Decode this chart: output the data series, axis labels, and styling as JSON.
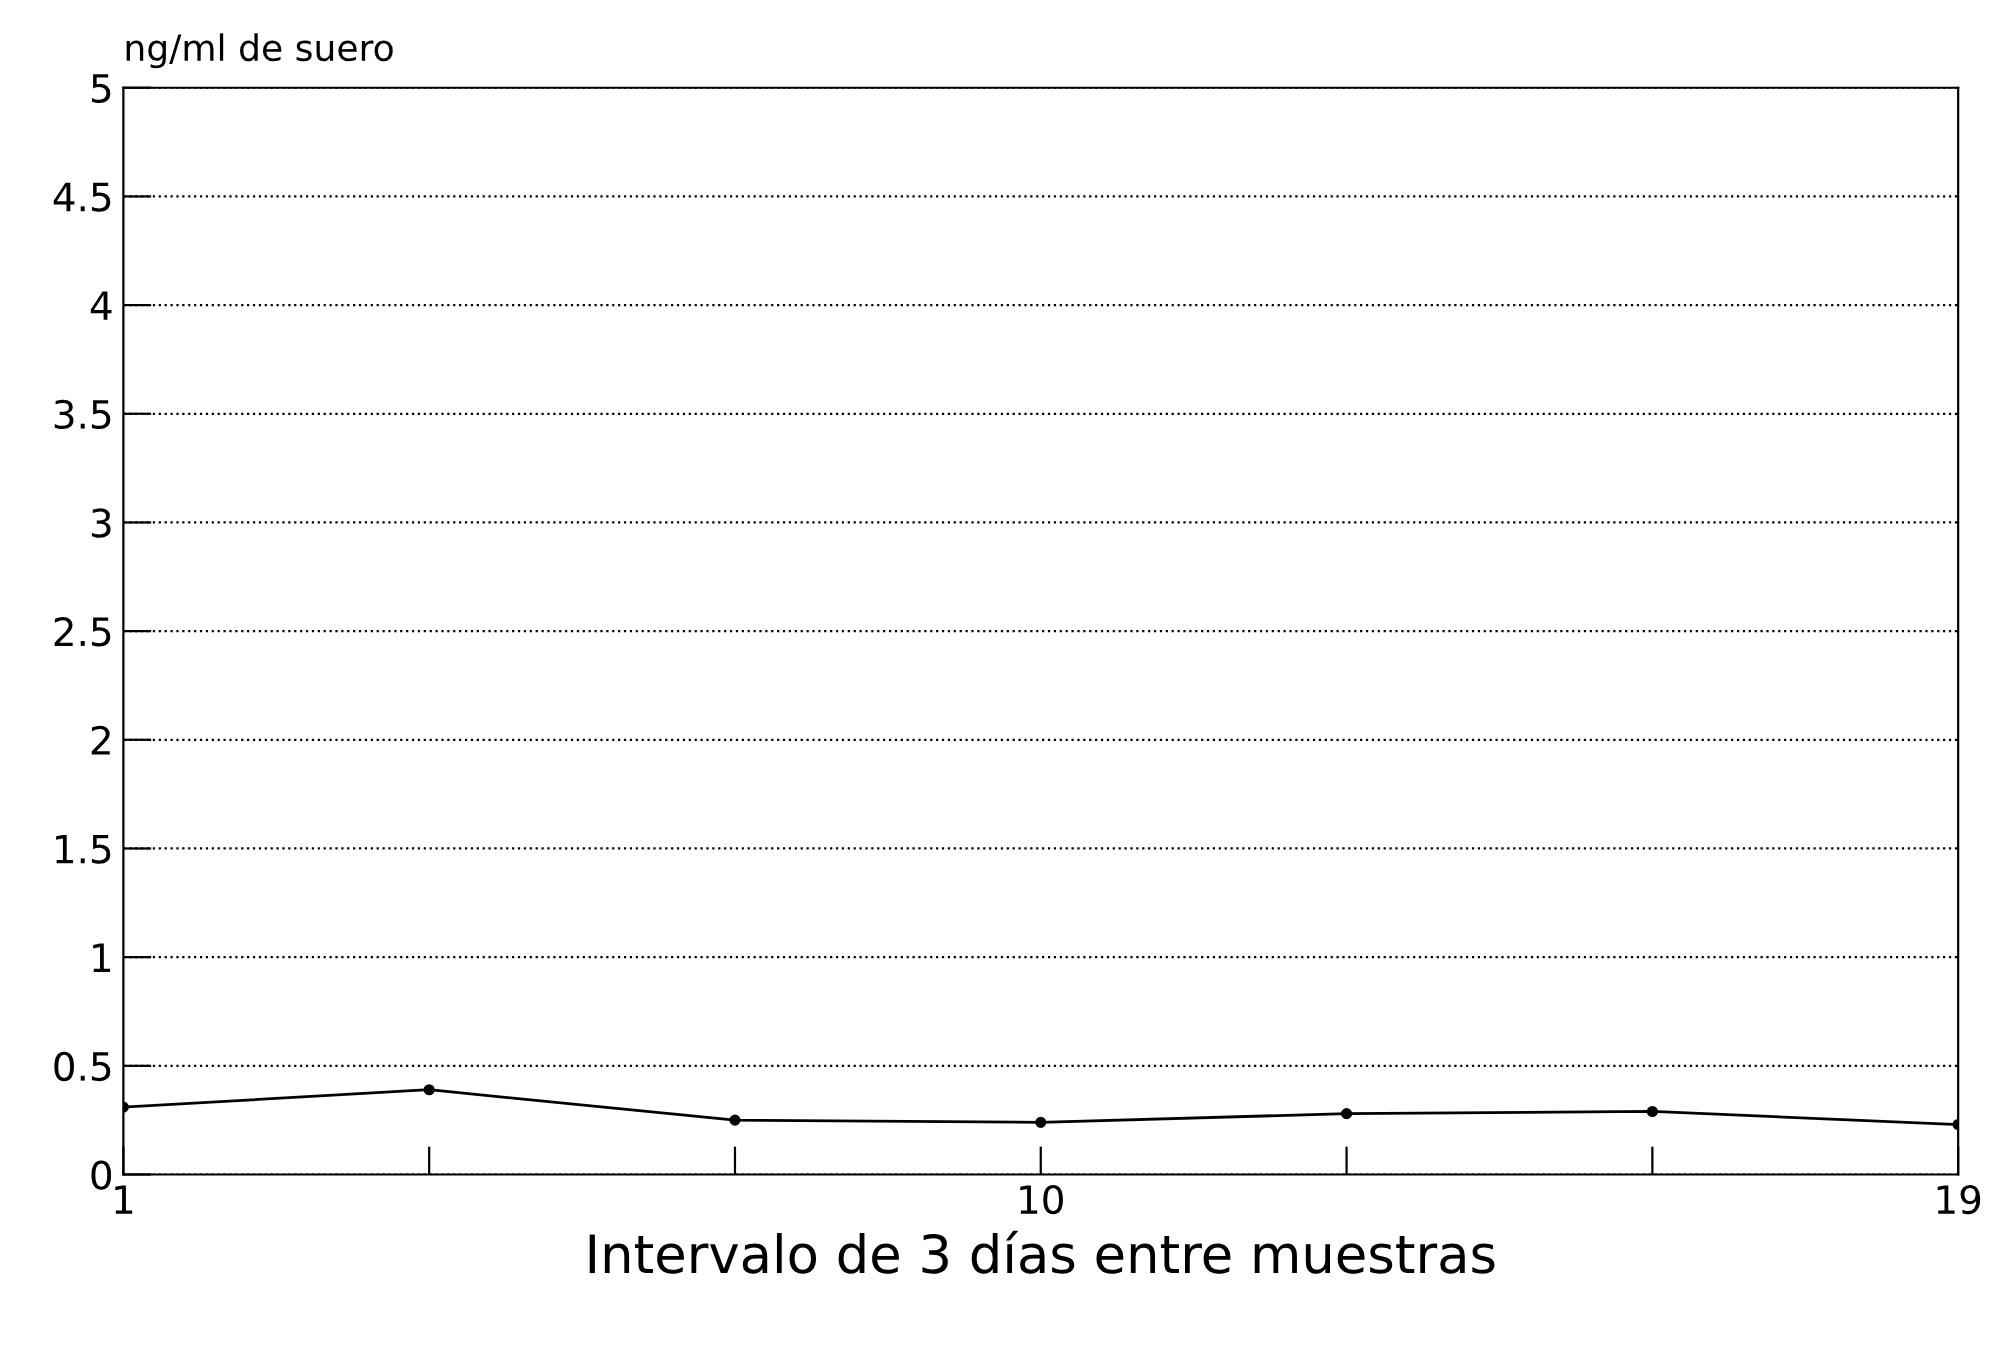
{
  "chart_data": {
    "type": "line",
    "ylabel": "ng/ml de suero",
    "xlabel": "Intervalo de 3 días entre muestras",
    "x": [
      1,
      4,
      7,
      10,
      13,
      16,
      19
    ],
    "series": [
      {
        "color": "#000000",
        "values": [
          0.31,
          0.39,
          0.25,
          0.24,
          0.28,
          0.29,
          0.23
        ]
      }
    ],
    "xlim": [
      1,
      19
    ],
    "xticks": [
      1,
      {
        "value": 4,
        "label": null
      },
      {
        "value": 7,
        "label": null
      },
      10,
      {
        "value": 13,
        "label": null
      },
      {
        "value": 16,
        "label": null
      },
      19
    ],
    "ylim": [
      0,
      5
    ],
    "yticks": [
      0,
      0.5,
      1,
      1.5,
      2,
      2.5,
      3,
      3.5,
      4,
      4.5,
      5
    ],
    "grid": "y",
    "marker": "circle",
    "line_style": "solid"
  }
}
